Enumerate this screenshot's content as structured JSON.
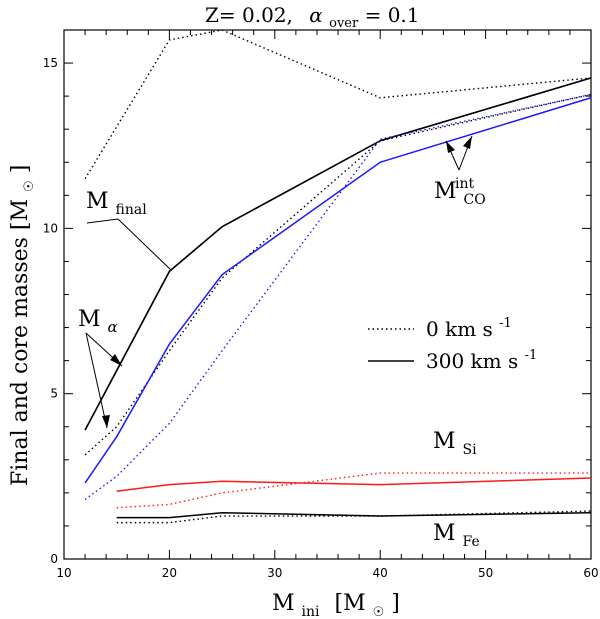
{
  "chart_data": {
    "type": "line",
    "title_parts": {
      "z": "Z= 0.02,",
      "alpha": "α",
      "over": "over",
      "eq": "= 0.1"
    },
    "xlabel": {
      "main": "M",
      "sub": "ini",
      "unit_open": "[M",
      "unit_close": "]"
    },
    "ylabel": {
      "main": "Final and core masses [M",
      "unit_close": "]"
    },
    "xlim": [
      10,
      60
    ],
    "ylim": [
      0,
      16
    ],
    "xticks": [
      10,
      20,
      30,
      40,
      50,
      60
    ],
    "yticks": [
      0,
      5,
      10,
      15
    ],
    "legend": {
      "placement": "middle-right",
      "entries": [
        {
          "style": "dotted",
          "text": "0  km s",
          "sup": "-1"
        },
        {
          "style": "solid",
          "text": "300  km s",
          "sup": "-1"
        }
      ]
    },
    "annotations": {
      "m_final": {
        "main": "M",
        "sub": "final"
      },
      "m_alpha": {
        "main": "M",
        "sub": "α"
      },
      "m_co": {
        "main": "M",
        "sub": "CO",
        "sup": "int"
      },
      "m_si": {
        "main": "M",
        "sub": "Si"
      },
      "m_fe": {
        "main": "M",
        "sub": "Fe"
      }
    },
    "colors": {
      "black": "#000000",
      "blue": "#1a1aff",
      "red": "#ff1a1a"
    },
    "series": [
      {
        "quantity": "M_final",
        "rotation": "0",
        "style": "dotted",
        "color": "#000000",
        "x": [
          12,
          20,
          25,
          40,
          60
        ],
        "y": [
          11.5,
          15.7,
          16.0,
          13.95,
          14.55
        ]
      },
      {
        "quantity": "M_final",
        "rotation": "300",
        "style": "solid",
        "color": "#000000",
        "x": [
          12,
          20,
          25,
          40,
          60
        ],
        "y": [
          3.9,
          8.7,
          10.05,
          12.65,
          14.55
        ]
      },
      {
        "quantity": "M_alpha",
        "rotation": "0",
        "style": "dotted",
        "color": "#000000",
        "x": [
          12,
          15,
          20,
          25,
          40,
          60
        ],
        "y": [
          3.15,
          4.0,
          6.3,
          8.5,
          12.65,
          14.05
        ]
      },
      {
        "quantity": "M_alpha",
        "rotation": "300",
        "style": "solid",
        "color": "#000000",
        "x": [
          12,
          20,
          25,
          40,
          60
        ],
        "y": [
          3.9,
          8.7,
          10.05,
          12.65,
          14.55
        ]
      },
      {
        "quantity": "M_CO",
        "rotation": "0",
        "style": "dotted",
        "color": "#1a1aff",
        "x": [
          12,
          15,
          20,
          25,
          40,
          60
        ],
        "y": [
          1.8,
          2.5,
          4.1,
          6.3,
          12.7,
          14.05
        ]
      },
      {
        "quantity": "M_CO",
        "rotation": "300",
        "style": "solid",
        "color": "#1a1aff",
        "x": [
          12,
          15,
          20,
          25,
          40,
          60
        ],
        "y": [
          2.3,
          3.7,
          6.5,
          8.6,
          12.0,
          13.95
        ]
      },
      {
        "quantity": "M_Si",
        "rotation": "0",
        "style": "dotted",
        "color": "#ff1a1a",
        "x": [
          15,
          20,
          25,
          40,
          60
        ],
        "y": [
          1.55,
          1.65,
          2.0,
          2.6,
          2.6
        ]
      },
      {
        "quantity": "M_Si",
        "rotation": "300",
        "style": "solid",
        "color": "#ff1a1a",
        "x": [
          15,
          20,
          25,
          40,
          60
        ],
        "y": [
          2.05,
          2.25,
          2.35,
          2.25,
          2.45
        ]
      },
      {
        "quantity": "M_Fe",
        "rotation": "0",
        "style": "dotted",
        "color": "#000000",
        "x": [
          15,
          20,
          25,
          40,
          60
        ],
        "y": [
          1.1,
          1.1,
          1.3,
          1.3,
          1.45
        ]
      },
      {
        "quantity": "M_Fe",
        "rotation": "300",
        "style": "solid",
        "color": "#000000",
        "x": [
          15,
          20,
          25,
          40,
          60
        ],
        "y": [
          1.25,
          1.25,
          1.4,
          1.3,
          1.4
        ]
      }
    ]
  }
}
